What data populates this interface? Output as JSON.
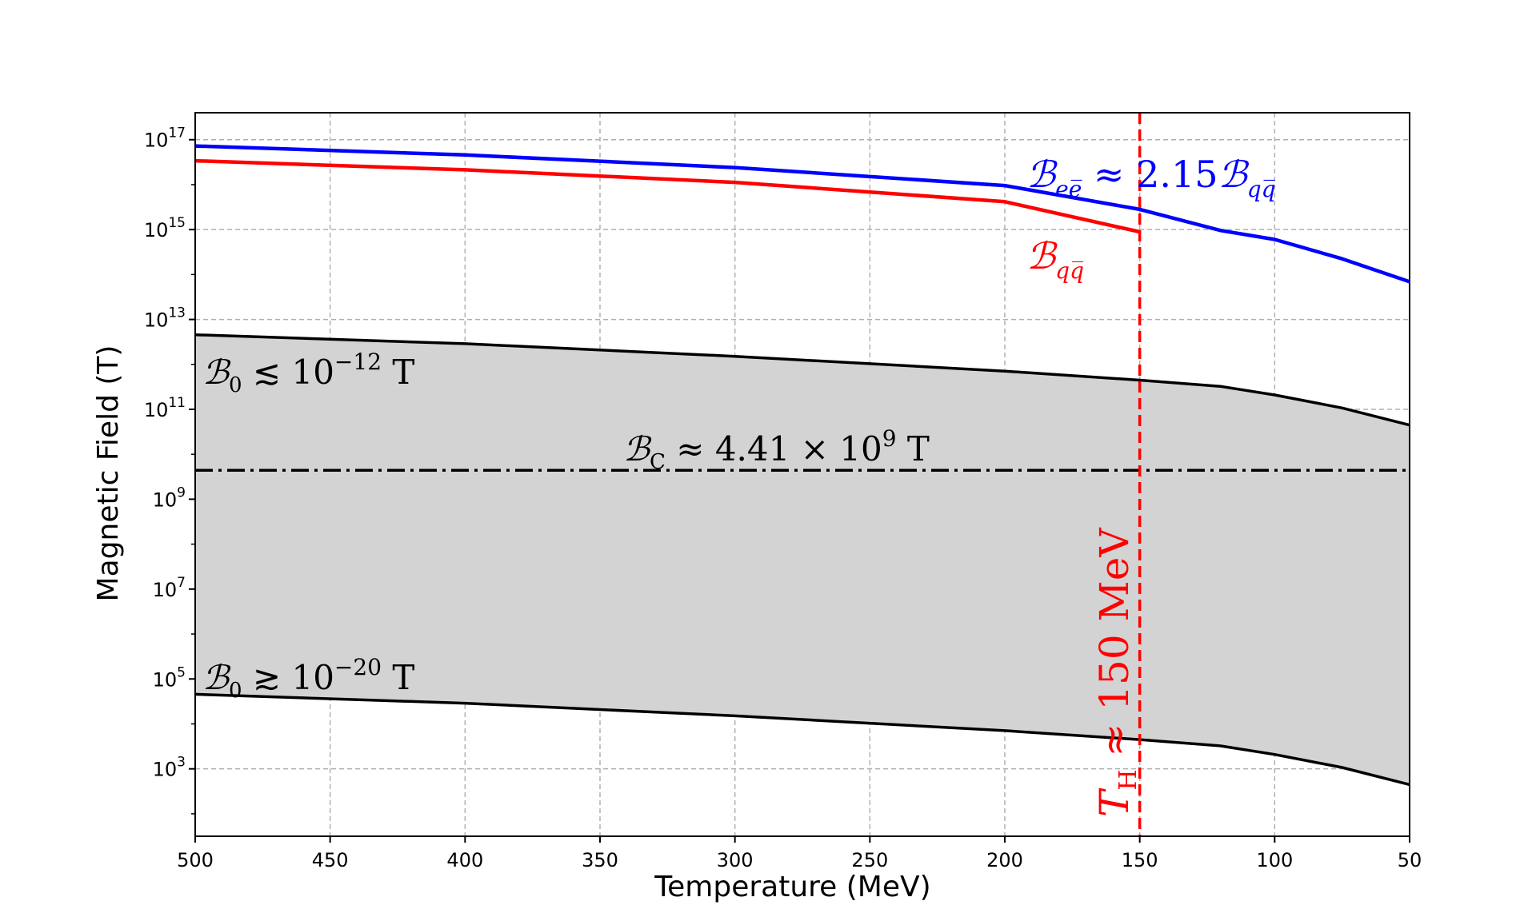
{
  "chart_data": {
    "type": "line",
    "xlabel": "Temperature (MeV)",
    "ylabel": "Magnetic Field (T)",
    "xlim": [
      500,
      50
    ],
    "x_inverted": true,
    "y_scale": "log",
    "ylim_log10": [
      1.5,
      17.6
    ],
    "grid": true,
    "x_ticks": [
      500,
      450,
      400,
      350,
      300,
      250,
      200,
      150,
      100,
      50
    ],
    "y_ticks_log10": [
      3,
      5,
      7,
      9,
      11,
      13,
      15,
      17
    ],
    "y_tick_base": "10",
    "series": [
      {
        "key": "bee",
        "color": "#0000ff",
        "points": [
          [
            500,
            16.86
          ],
          [
            400,
            16.66
          ],
          [
            300,
            16.38
          ],
          [
            200,
            15.98
          ],
          [
            150,
            15.45
          ],
          [
            120,
            14.98
          ],
          [
            100,
            14.78
          ],
          [
            75,
            14.35
          ],
          [
            50,
            13.84
          ]
        ]
      },
      {
        "key": "bqq",
        "color": "#ff0000",
        "points": [
          [
            500,
            16.53
          ],
          [
            400,
            16.33
          ],
          [
            300,
            16.05
          ],
          [
            200,
            15.62
          ],
          [
            150,
            14.95
          ]
        ]
      },
      {
        "key": "upper_bound",
        "color": "#000000",
        "points": [
          [
            500,
            12.66
          ],
          [
            400,
            12.46
          ],
          [
            300,
            12.18
          ],
          [
            200,
            11.85
          ],
          [
            150,
            11.65
          ],
          [
            120,
            11.51
          ],
          [
            100,
            11.32
          ],
          [
            75,
            11.03
          ],
          [
            50,
            10.65
          ]
        ]
      },
      {
        "key": "lower_bound",
        "color": "#000000",
        "points": [
          [
            500,
            4.66
          ],
          [
            400,
            4.46
          ],
          [
            300,
            4.18
          ],
          [
            200,
            3.85
          ],
          [
            150,
            3.65
          ],
          [
            120,
            3.51
          ],
          [
            100,
            3.32
          ],
          [
            75,
            3.03
          ],
          [
            50,
            2.65
          ]
        ]
      }
    ],
    "shaded_region": {
      "between": [
        "upper_bound",
        "lower_bound"
      ],
      "color": "#d3d3d3"
    },
    "hline": {
      "log10_value": 9.644,
      "style": "dash-dot",
      "color": "#000000"
    },
    "vline": {
      "x": 150,
      "style": "dashed",
      "color": "#ff0000"
    },
    "annotations": {
      "bee_label": {
        "sym": "ℬ",
        "sub": "ee̅",
        "mid": " ≈ 2.15",
        "sym2": "ℬ",
        "sub2": "qq̅",
        "color": "#0000ff"
      },
      "bqq_label": {
        "sym": "ℬ",
        "sub": "qq̅",
        "color": "#ff0000"
      },
      "upper_label": {
        "sym": "ℬ",
        "sub": "0",
        "rel": " ≲ 10",
        "exp": "−12",
        "unit": " T"
      },
      "lower_label": {
        "sym": "ℬ",
        "sub": "0",
        "rel": " ≳ 10",
        "exp": "−20",
        "unit": " T"
      },
      "bc_label": {
        "sym": "ℬ",
        "sub": "C",
        "mid": " ≈ 4.41 × 10",
        "exp": "9",
        "unit": " T"
      },
      "th_label": {
        "sym": "T",
        "sub": "H",
        "rest": " ≈ 150 MeV",
        "color": "#ff0000"
      }
    }
  }
}
